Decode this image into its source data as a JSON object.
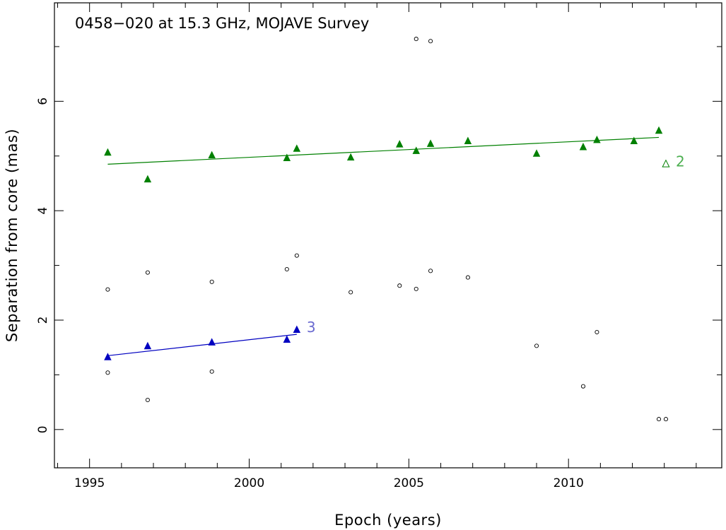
{
  "chart_data": {
    "type": "scatter",
    "title": "0458−020 at 15.3 GHz, MOJAVE Survey",
    "xlabel": "Epoch (years)",
    "ylabel": "Separation from core (mas)",
    "xlim": [
      1993.9,
      2014.8
    ],
    "ylim": [
      -0.7,
      7.8
    ],
    "x_ticks_major": [
      1995,
      2000,
      2005,
      2010
    ],
    "x_tick_labels": [
      "1995",
      "2000",
      "2005",
      "2010"
    ],
    "y_ticks_major": [
      0,
      2,
      4,
      6
    ],
    "y_tick_labels": [
      "0",
      "2",
      "4",
      "6"
    ],
    "grid": false,
    "series": [
      {
        "name": "2",
        "color": "#008000",
        "marker": "filled-triangle",
        "points": [
          [
            1995.57,
            5.06
          ],
          [
            1996.82,
            4.57
          ],
          [
            1998.83,
            5.01
          ],
          [
            2001.18,
            4.96
          ],
          [
            2001.49,
            5.13
          ],
          [
            2003.18,
            4.97
          ],
          [
            2004.71,
            5.21
          ],
          [
            2005.23,
            5.09
          ],
          [
            2005.68,
            5.22
          ],
          [
            2006.85,
            5.27
          ],
          [
            2009.0,
            5.04
          ],
          [
            2010.46,
            5.16
          ],
          [
            2010.89,
            5.29
          ],
          [
            2012.05,
            5.27
          ],
          [
            2012.83,
            5.46
          ]
        ],
        "open_points": [
          [
            2013.05,
            4.85
          ]
        ],
        "fit": [
          [
            1995.57,
            4.85
          ],
          [
            2012.83,
            5.34
          ]
        ],
        "label": "2"
      },
      {
        "name": "3",
        "color": "#0000c0",
        "label_color": "#6a6ad0",
        "marker": "filled-triangle",
        "points": [
          [
            1995.57,
            1.32
          ],
          [
            1996.82,
            1.52
          ],
          [
            1998.83,
            1.59
          ],
          [
            2001.18,
            1.64
          ],
          [
            2001.49,
            1.82
          ]
        ],
        "fit": [
          [
            1995.57,
            1.35
          ],
          [
            2001.49,
            1.74
          ]
        ],
        "label": "3"
      }
    ],
    "other_components": {
      "color": "#000000",
      "marker": "open-circle",
      "points": [
        [
          1995.57,
          2.56
        ],
        [
          1995.57,
          1.04
        ],
        [
          1996.82,
          2.87
        ],
        [
          1996.82,
          0.54
        ],
        [
          1998.83,
          2.7
        ],
        [
          1998.83,
          1.06
        ],
        [
          2001.18,
          2.93
        ],
        [
          2001.49,
          3.18
        ],
        [
          2003.18,
          2.51
        ],
        [
          2004.71,
          2.63
        ],
        [
          2005.23,
          2.57
        ],
        [
          2005.23,
          7.14
        ],
        [
          2005.68,
          2.9
        ],
        [
          2005.68,
          7.1
        ],
        [
          2006.85,
          2.78
        ],
        [
          2009.0,
          1.53
        ],
        [
          2010.46,
          0.79
        ],
        [
          2010.89,
          1.78
        ],
        [
          2012.83,
          0.19
        ],
        [
          2013.05,
          0.19
        ]
      ]
    }
  }
}
